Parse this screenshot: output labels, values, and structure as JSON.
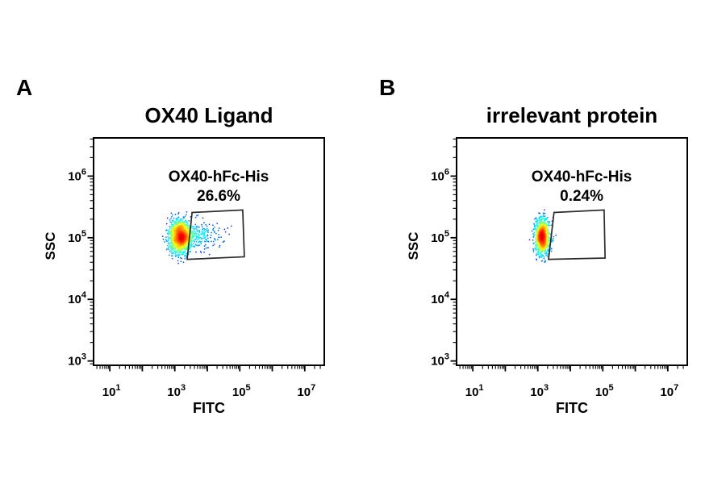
{
  "figure": {
    "background": "#ffffff",
    "text_color": "#000000",
    "axis_color": "#000000",
    "gate_color": "#2b2b2b",
    "description": "Flow cytometry pseudocolor dot plots, FITC vs SSC"
  },
  "chart_data": [
    {
      "type": "scatter",
      "subtype": "flow-cytometry-pseudocolor-dot-plot",
      "panel_letter": "A",
      "title": "OX40 Ligand",
      "xlabel": "FITC",
      "ylabel": "SSC",
      "x_scale": "log10",
      "y_scale": "log10",
      "xlim_log10": [
        0.5,
        7.6
      ],
      "ylim_log10": [
        2.93,
        6.62
      ],
      "x_labeled_decades": [
        1,
        3,
        5,
        7
      ],
      "y_labeled_decades": [
        3,
        4,
        5,
        6
      ],
      "tick_base": "10",
      "grid": false,
      "legend": false,
      "gate": {
        "label": "OX40-hFc-His",
        "percent_label": "26.6%",
        "percent_value": 26.6,
        "polygon_log10": [
          [
            3.53,
            5.41
          ],
          [
            5.09,
            5.45
          ],
          [
            5.14,
            4.69
          ],
          [
            3.38,
            4.65
          ]
        ],
        "label_anchor_log10": [
          4.35,
          6.02
        ]
      },
      "populations": [
        {
          "name": "main-cluster",
          "shape": "normal",
          "center_log10": [
            3.16,
            5.02
          ],
          "sigma_log10": [
            0.155,
            0.135
          ],
          "count": 1500,
          "seed": 101
        },
        {
          "name": "positive-tail",
          "shape": "half-normal-right",
          "center_log10": [
            3.28,
            5.01
          ],
          "sigma_log10": [
            0.5,
            0.12
          ],
          "count": 300,
          "seed": 102
        },
        {
          "name": "sparse-outliers",
          "shape": "uniform-x",
          "x_range_log10": [
            3.7,
            4.8
          ],
          "y_center_log10": 5.0,
          "y_sigma_log10": 0.15,
          "count": 12,
          "seed": 103
        }
      ],
      "colormap": "jet-density"
    },
    {
      "type": "scatter",
      "subtype": "flow-cytometry-pseudocolor-dot-plot",
      "panel_letter": "B",
      "title": "irrelevant protein",
      "xlabel": "FITC",
      "ylabel": "SSC",
      "x_scale": "log10",
      "y_scale": "log10",
      "xlim_log10": [
        0.5,
        7.6
      ],
      "ylim_log10": [
        2.93,
        6.62
      ],
      "x_labeled_decades": [
        1,
        3,
        5,
        7
      ],
      "y_labeled_decades": [
        3,
        4,
        5,
        6
      ],
      "tick_base": "10",
      "grid": false,
      "legend": false,
      "gate": {
        "label": "OX40-hFc-His",
        "percent_label": "0.24%",
        "percent_value": 0.24,
        "polygon_log10": [
          [
            3.5,
            5.41
          ],
          [
            5.04,
            5.45
          ],
          [
            5.07,
            4.67
          ],
          [
            3.33,
            4.65
          ]
        ],
        "label_anchor_log10": [
          4.35,
          6.02
        ]
      },
      "populations": [
        {
          "name": "main-cluster",
          "shape": "normal",
          "center_log10": [
            3.14,
            5.02
          ],
          "sigma_log10": [
            0.105,
            0.14
          ],
          "count": 1300,
          "seed": 201
        },
        {
          "name": "sparse-spill",
          "shape": "uniform-x",
          "x_range_log10": [
            3.28,
            3.6
          ],
          "y_center_log10": 5.0,
          "y_sigma_log10": 0.14,
          "count": 6,
          "seed": 202
        }
      ],
      "colormap": "jet-density"
    }
  ]
}
